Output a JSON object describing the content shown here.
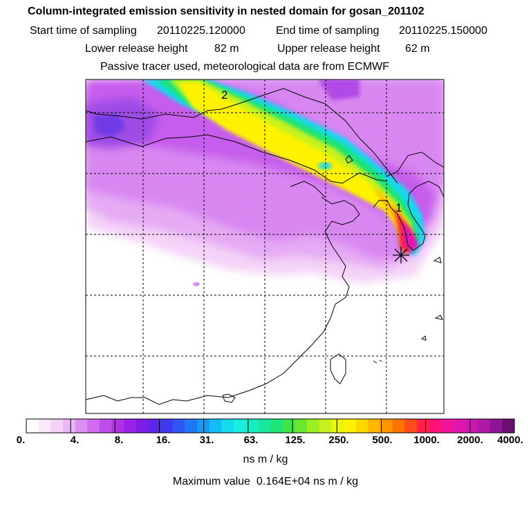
{
  "header": {
    "title": "Column-integrated emission sensitivity in nested domain for gosan_201102",
    "start_label": "Start time of sampling",
    "start_value": "20110225.120000",
    "end_label": "End time of sampling",
    "end_value": "20110225.150000",
    "lower_label": "Lower release height",
    "lower_value": "82 m",
    "upper_label": "Upper release height",
    "upper_value": "62 m",
    "note": "Passive tracer used, meteorological data are from ECMWF"
  },
  "map": {
    "markers": [
      {
        "label": "1"
      },
      {
        "label": "2"
      }
    ],
    "release_site_icon": "asterisk-star-icon"
  },
  "colorbar": {
    "ticks": [
      "0.",
      "4.",
      "8.",
      "16.",
      "31.",
      "63.",
      "125.",
      "250.",
      "500.",
      "1000.",
      "2000.",
      "4000."
    ],
    "colors": [
      "#ffffff",
      "#fbe9fb",
      "#f4d1f8",
      "#eab6f6",
      "#dc8ff2",
      "#cf6cef",
      "#c04de9",
      "#b030e6",
      "#9b22e8",
      "#7d1ee6",
      "#5d24ea",
      "#4038ef",
      "#2f55f2",
      "#1d78f4",
      "#129af5",
      "#12bdf4",
      "#17d9ee",
      "#1aeede",
      "#16edc0",
      "#17e89c",
      "#1ee376",
      "#3ee44a",
      "#6ae830",
      "#9aee26",
      "#c6f21c",
      "#e8f412",
      "#fff200",
      "#ffd800",
      "#ffb800",
      "#ff9600",
      "#ff7400",
      "#ff4a1a",
      "#ff2446",
      "#ff1476",
      "#f2149a",
      "#e016b0",
      "#c81aaf",
      "#ad1aa8",
      "#8e1695",
      "#6a0f72"
    ],
    "units": "ns m / kg"
  },
  "footer": {
    "max_label": "Maximum value",
    "max_value": "0.164E+04",
    "max_units": "ns m / kg"
  }
}
